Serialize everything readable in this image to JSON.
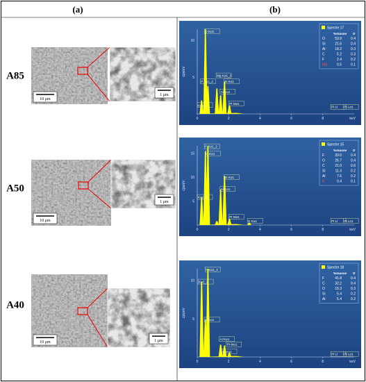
{
  "header": {
    "a": "(a)",
    "b": "(b)"
  },
  "rows": [
    {
      "label": "A85",
      "scale_main": "10 μm",
      "scale_inset": "1 μm",
      "spectrum": {
        "title": "Spectre 17",
        "col_mass": "%masse",
        "col_sigma": "σ",
        "y_axis": "cps/eV",
        "x_unit": "keV",
        "yticks": [
          "5",
          "10"
        ],
        "xticks": [
          "0",
          "2",
          "4",
          "6",
          "8"
        ],
        "elements": [
          [
            "O",
            "53.9",
            "0.4"
          ],
          [
            "Si",
            "21.6",
            "0.4"
          ],
          [
            "Al",
            "18.2",
            "0.3"
          ],
          [
            "C",
            "5.2",
            "0.3"
          ],
          [
            "F",
            "2.4",
            "0.2"
          ],
          [
            "Mg",
            "0.5",
            "0.1"
          ]
        ],
        "peaks": [
          "O Kα1",
          "Mg Kα1_2",
          "F Kα1_2",
          "Si Kα1",
          "Al Kα1",
          "Kα1_2",
          "Pt Mα1",
          "Pt Ll",
          "Pt Lα1"
        ]
      }
    },
    {
      "label": "A50",
      "scale_main": "10 μm",
      "scale_inset": "1 μm",
      "spectrum": {
        "title": "Spectre 15",
        "col_mass": "%masse",
        "col_sigma": "σ",
        "y_axis": "cps/eV",
        "x_unit": "keV",
        "yticks": [
          "5",
          "10",
          "15"
        ],
        "xticks": [
          "0",
          "2",
          "4",
          "6",
          "8"
        ],
        "elements": [
          [
            "F",
            "33.0",
            "0.4"
          ],
          [
            "O",
            "26.7",
            "0.4"
          ],
          [
            "C",
            "21.0",
            "0.6"
          ],
          [
            "Si",
            "11.3",
            "0.2"
          ],
          [
            "Al",
            "7.6",
            "0.2"
          ],
          [
            "K",
            "0.4",
            "0.1"
          ]
        ],
        "peaks": [
          "F Kα1_2",
          "O Kα1",
          "Kα1_2",
          "Si Kα1",
          "Al Kα1",
          "Pt Mα1",
          "K Kα1",
          "Pt Ll",
          "Pt Lα1"
        ]
      }
    },
    {
      "label": "A40",
      "scale_main": "10 μm",
      "scale_inset": "1 μm",
      "spectrum": {
        "title": "Spectre 18",
        "col_mass": "%masse",
        "col_sigma": "σ",
        "y_axis": "cps/eV",
        "x_unit": "keV",
        "yticks": [
          "5",
          "10"
        ],
        "xticks": [
          "0",
          "2",
          "4",
          "6",
          "8"
        ],
        "elements": [
          [
            "F",
            "41.8",
            "0.4"
          ],
          [
            "C",
            "32.2",
            "0.4"
          ],
          [
            "O",
            "15.3",
            "0.3"
          ],
          [
            "Si",
            "5.4",
            "0.2"
          ],
          [
            "Al",
            "5.4",
            "0.2"
          ]
        ],
        "peaks": [
          "F Kα1_2",
          "Kα1_2",
          "O Kα1",
          "Al Kα1",
          "Pt Mα1",
          "Si Kα1",
          "Pt Ll",
          "Pt Lα1"
        ]
      }
    }
  ]
}
